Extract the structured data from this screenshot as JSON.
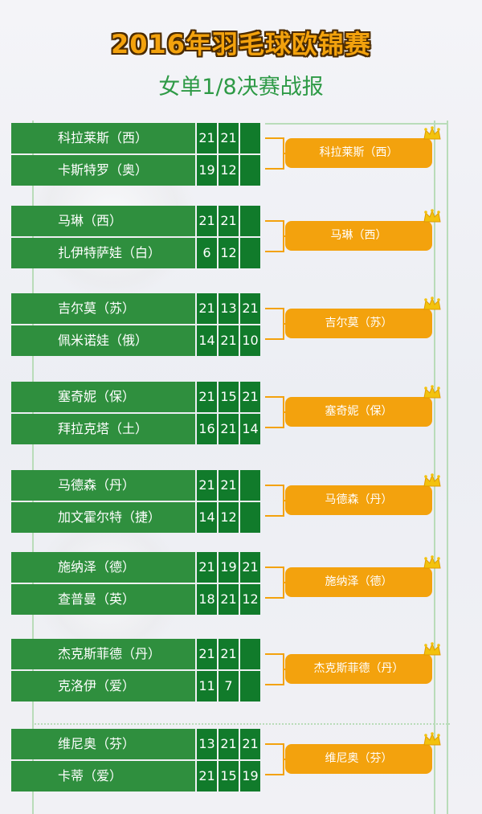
{
  "header": {
    "title": "2016年羽毛球欧锦赛",
    "subtitle": "女单1/8决赛战报"
  },
  "matches": [
    {
      "p1": "科拉莱斯（西）",
      "p2": "卡斯特罗（奥）",
      "s1": [
        "21",
        "21",
        ""
      ],
      "s2": [
        "19",
        "12",
        ""
      ],
      "winner": "科拉莱斯（西）"
    },
    {
      "p1": "马琳（西）",
      "p2": "扎伊特萨娃（白）",
      "s1": [
        "21",
        "21",
        ""
      ],
      "s2": [
        "6",
        "12",
        ""
      ],
      "winner": "马琳（西）"
    },
    {
      "p1": "吉尔莫（苏）",
      "p2": "佩米诺娃（俄）",
      "s1": [
        "21",
        "13",
        "21"
      ],
      "s2": [
        "14",
        "21",
        "10"
      ],
      "winner": "吉尔莫（苏）"
    },
    {
      "p1": "塞奇妮（保）",
      "p2": "拜拉克塔（土）",
      "s1": [
        "21",
        "15",
        "21"
      ],
      "s2": [
        "16",
        "21",
        "14"
      ],
      "winner": "塞奇妮（保）"
    },
    {
      "p1": "马德森（丹）",
      "p2": "加文霍尔特（捷）",
      "s1": [
        "21",
        "21",
        ""
      ],
      "s2": [
        "14",
        "12",
        ""
      ],
      "winner": "马德森（丹）"
    },
    {
      "p1": "施纳泽（德）",
      "p2": "查普曼（英）",
      "s1": [
        "21",
        "19",
        "21"
      ],
      "s2": [
        "18",
        "21",
        "12"
      ],
      "winner": "施纳泽（德）"
    },
    {
      "p1": "杰克斯菲德（丹）",
      "p2": "克洛伊（爱）",
      "s1": [
        "21",
        "21",
        ""
      ],
      "s2": [
        "11",
        "7",
        ""
      ],
      "winner": "杰克斯菲德（丹）"
    },
    {
      "p1": "维尼奥（芬）",
      "p2": "卡蒂（爱）",
      "s1": [
        "13",
        "21",
        "21"
      ],
      "s2": [
        "21",
        "15",
        "19"
      ],
      "winner": "维尼奥（芬）"
    }
  ],
  "colors": {
    "accent": "#f3a20d",
    "green": "#2f8f3e",
    "dark_green": "#117b2b",
    "subtitle": "#2e9a46"
  },
  "icons": {
    "winner_marker": "crown-icon"
  }
}
